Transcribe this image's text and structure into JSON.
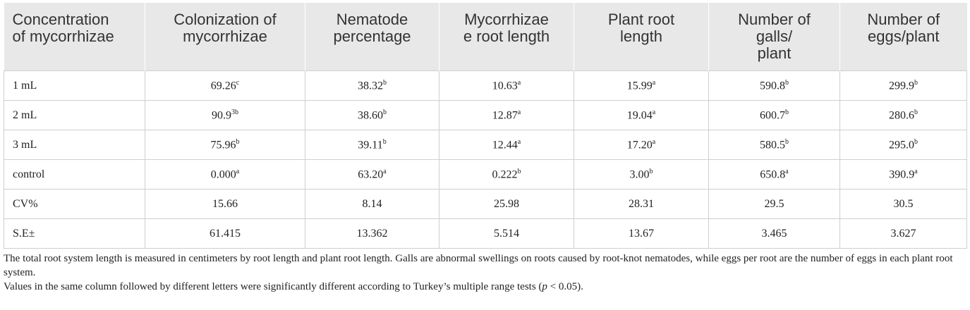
{
  "table": {
    "headers": [
      [
        "Concentration",
        "of mycorrhizae"
      ],
      [
        "Colonization of",
        "mycorrhizae"
      ],
      [
        "Nematode",
        "percentage"
      ],
      [
        "Mycorrhizae",
        "e root length"
      ],
      [
        "Plant root",
        "length"
      ],
      [
        "Number of",
        "galls/",
        "plant"
      ],
      [
        "Number of",
        "eggs/plant"
      ]
    ],
    "rows": [
      {
        "label": "1 mL",
        "cells": [
          {
            "value": "69.26",
            "sup": "c"
          },
          {
            "value": "38.32",
            "sup": "b"
          },
          {
            "value": "10.63",
            "sup": "a"
          },
          {
            "value": "15.99",
            "sup": "a"
          },
          {
            "value": "590.8",
            "sup": "b"
          },
          {
            "value": "299.9",
            "sup": "b"
          }
        ]
      },
      {
        "label": "2 mL",
        "cells": [
          {
            "value": "90.9",
            "sup": "3b"
          },
          {
            "value": "38.60",
            "sup": "b"
          },
          {
            "value": "12.87",
            "sup": "a"
          },
          {
            "value": "19.04",
            "sup": "a"
          },
          {
            "value": "600.7",
            "sup": "b"
          },
          {
            "value": "280.6",
            "sup": "b"
          }
        ]
      },
      {
        "label": "3 mL",
        "cells": [
          {
            "value": "75.96",
            "sup": "b"
          },
          {
            "value": "39.11",
            "sup": "b"
          },
          {
            "value": "12.44",
            "sup": "a"
          },
          {
            "value": "17.20",
            "sup": "a"
          },
          {
            "value": "580.5",
            "sup": "b"
          },
          {
            "value": "295.0",
            "sup": "b"
          }
        ]
      },
      {
        "label": "control",
        "cells": [
          {
            "value": "0.000",
            "sup": "a"
          },
          {
            "value": "63.20",
            "sup": "a"
          },
          {
            "value": "0.222",
            "sup": "b"
          },
          {
            "value": "3.00",
            "sup": "b"
          },
          {
            "value": "650.8",
            "sup": "a"
          },
          {
            "value": "390.9",
            "sup": "a"
          }
        ]
      },
      {
        "label": "CV%",
        "cells": [
          {
            "value": "15.66"
          },
          {
            "value": "8.14"
          },
          {
            "value": "25.98"
          },
          {
            "value": "28.31"
          },
          {
            "value": "29.5"
          },
          {
            "value": "30.5"
          }
        ]
      },
      {
        "label": "S.E±",
        "cells": [
          {
            "value": "61.415"
          },
          {
            "value": "13.362"
          },
          {
            "value": "5.514"
          },
          {
            "value": "13.67"
          },
          {
            "value": "3.465"
          },
          {
            "value": "3.627"
          }
        ]
      }
    ]
  },
  "footnotes": {
    "note": "The total root system length is measured in centimeters by root length and plant root length. Galls are abnormal swellings on roots caused by root-knot nematodes, while eggs per root are the number of eggs in each plant root system.",
    "significance": [
      "Values in the same column followed by different letters were significantly different according to Turkey’s multiple range tests (",
      "p",
      " < 0.05)."
    ]
  }
}
